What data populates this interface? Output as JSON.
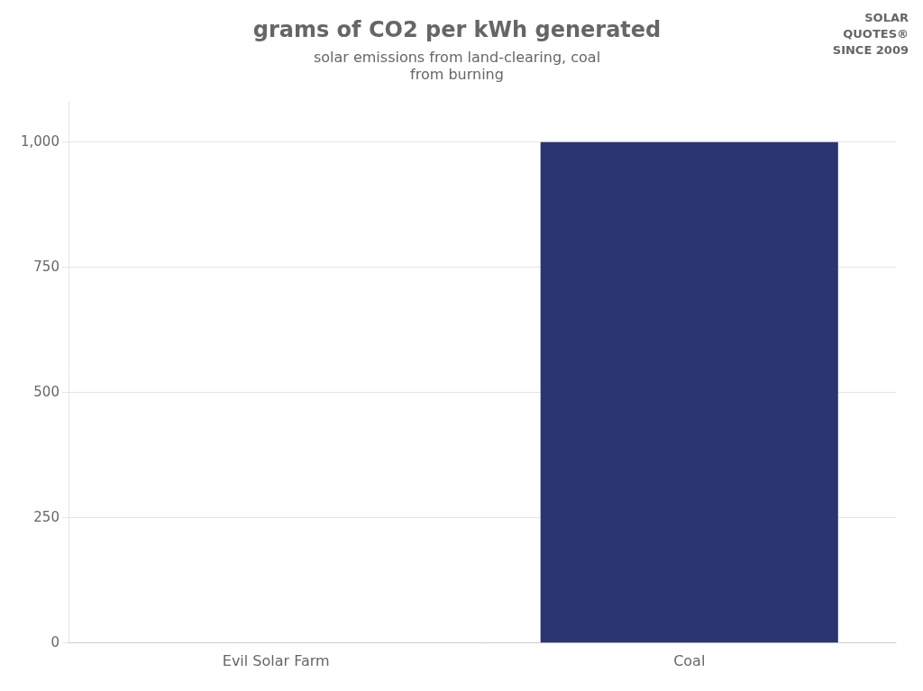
{
  "chart_data": {
    "type": "bar",
    "title": "grams of CO2 per kWh generated",
    "subtitle": [
      "solar emissions from land-clearing, coal",
      "from burning"
    ],
    "annotations": [
      "SOLAR",
      "QUOTES®",
      "SINCE 2009"
    ],
    "categories": [
      "Evil Solar Farm",
      "Coal"
    ],
    "values": [
      0,
      1000
    ],
    "colors": [
      "#8090a8",
      "#2C3570"
    ],
    "ylim": [
      0,
      1080
    ],
    "yticks": [
      0,
      250,
      500,
      750,
      {
        "value": 1000,
        "label": "1,000"
      }
    ],
    "grid": true
  }
}
